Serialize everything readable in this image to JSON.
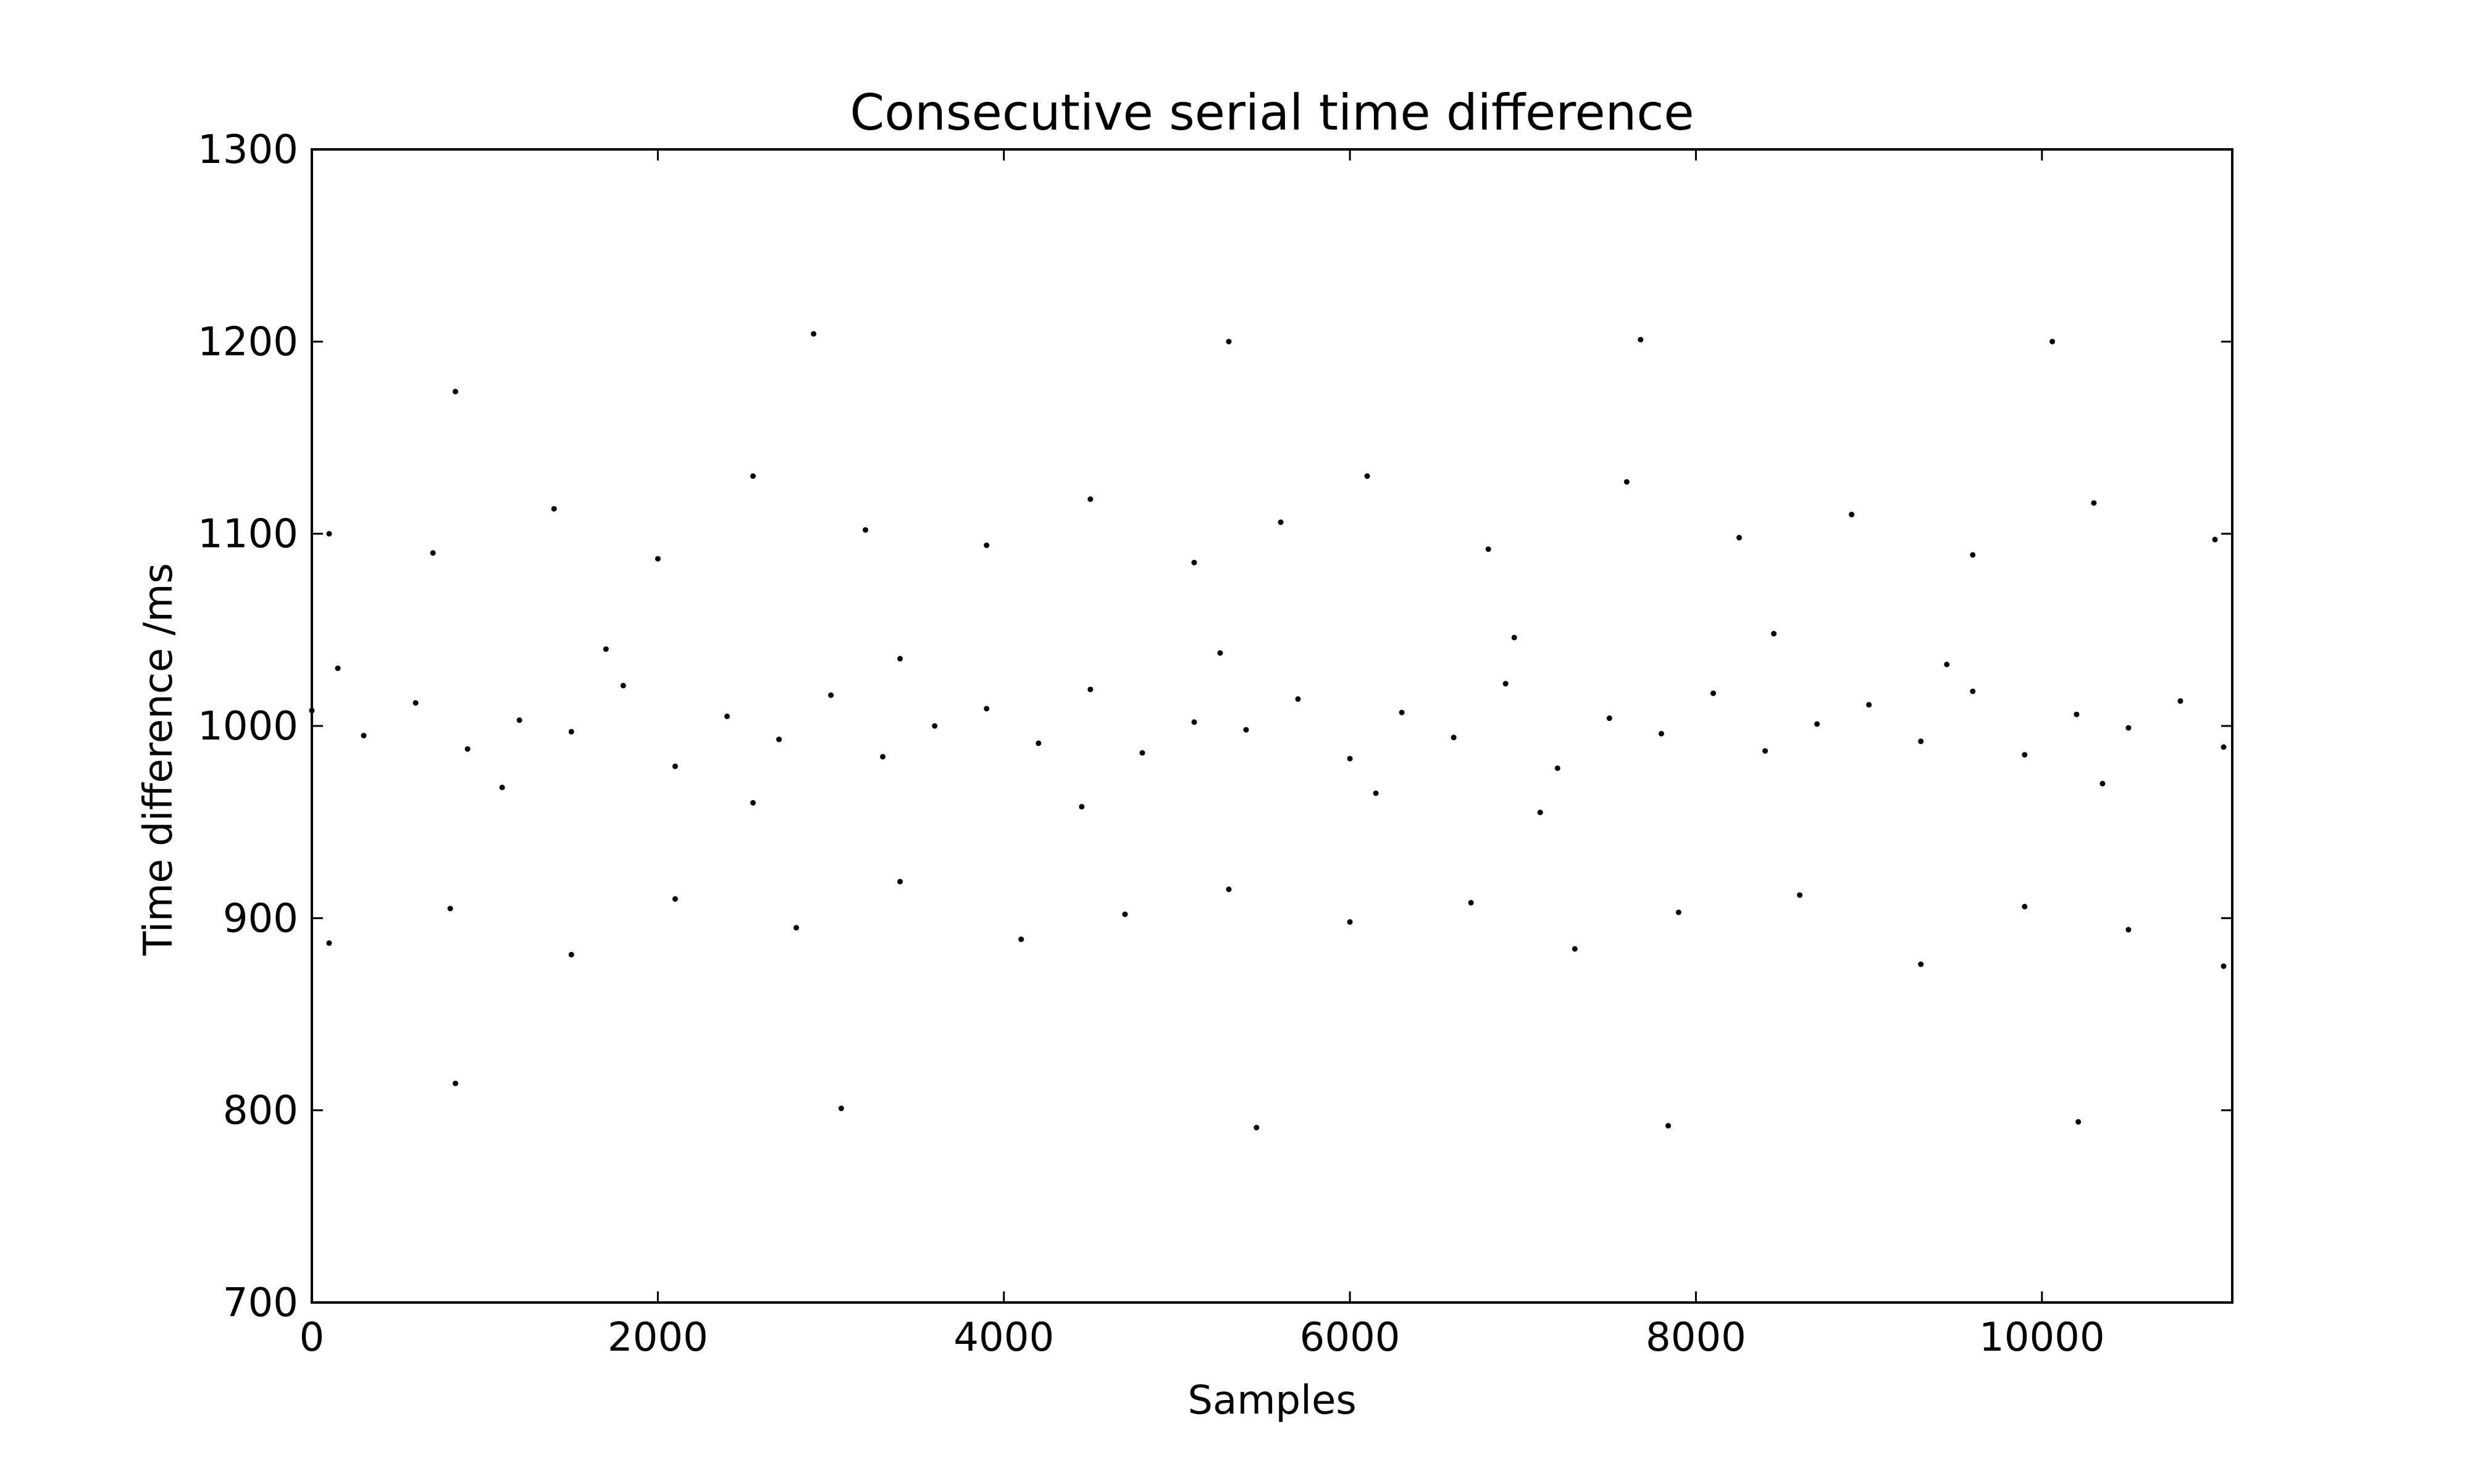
{
  "chart_data": {
    "type": "scatter",
    "title": "Consecutive serial time difference",
    "xlabel": "Samples",
    "ylabel": "Time difference /ms",
    "xlim": [
      0,
      11100
    ],
    "ylim": [
      700,
      1300
    ],
    "xticks": [
      0,
      2000,
      4000,
      6000,
      8000,
      10000
    ],
    "xtick_labels": [
      "0",
      "2000",
      "4000",
      "6000",
      "8000",
      "10000"
    ],
    "yticks": [
      700,
      800,
      900,
      1000,
      1100,
      1200,
      1300
    ],
    "ytick_labels": [
      "700",
      "800",
      "900",
      "1000",
      "1100",
      "1200",
      "1300"
    ],
    "grid": false,
    "legend": "none",
    "marker_color": "#000000",
    "series": [
      {
        "points": [
          [
            0,
            1008
          ],
          [
            300,
            995
          ],
          [
            600,
            1012
          ],
          [
            900,
            988
          ],
          [
            1200,
            1003
          ],
          [
            1500,
            997
          ],
          [
            1800,
            1021
          ],
          [
            2100,
            979
          ],
          [
            2400,
            1005
          ],
          [
            2700,
            993
          ],
          [
            3000,
            1016
          ],
          [
            3300,
            984
          ],
          [
            3600,
            1000
          ],
          [
            3900,
            1009
          ],
          [
            4200,
            991
          ],
          [
            4500,
            1019
          ],
          [
            4800,
            986
          ],
          [
            5100,
            1002
          ],
          [
            5400,
            998
          ],
          [
            5700,
            1014
          ],
          [
            6000,
            983
          ],
          [
            6300,
            1007
          ],
          [
            6600,
            994
          ],
          [
            6900,
            1022
          ],
          [
            7200,
            978
          ],
          [
            7500,
            1004
          ],
          [
            7800,
            996
          ],
          [
            8100,
            1017
          ],
          [
            8400,
            987
          ],
          [
            8700,
            1001
          ],
          [
            9000,
            1011
          ],
          [
            9300,
            992
          ],
          [
            9600,
            1018
          ],
          [
            9900,
            985
          ],
          [
            10200,
            1006
          ],
          [
            10500,
            999
          ],
          [
            10800,
            1013
          ],
          [
            11050,
            989
          ],
          [
            150,
            1030
          ],
          [
            1100,
            968
          ],
          [
            1700,
            1040
          ],
          [
            2550,
            960
          ],
          [
            3400,
            1035
          ],
          [
            4450,
            958
          ],
          [
            5250,
            1038
          ],
          [
            6150,
            965
          ],
          [
            6950,
            1046
          ],
          [
            7100,
            955
          ],
          [
            8450,
            1048
          ],
          [
            9450,
            1032
          ],
          [
            10350,
            970
          ],
          [
            100,
            1100
          ],
          [
            700,
            1090
          ],
          [
            1400,
            1113
          ],
          [
            2000,
            1087
          ],
          [
            2550,
            1130
          ],
          [
            3200,
            1102
          ],
          [
            3900,
            1094
          ],
          [
            4500,
            1118
          ],
          [
            5100,
            1085
          ],
          [
            5600,
            1106
          ],
          [
            6100,
            1130
          ],
          [
            6800,
            1092
          ],
          [
            7600,
            1127
          ],
          [
            8250,
            1098
          ],
          [
            8900,
            1110
          ],
          [
            9600,
            1089
          ],
          [
            10300,
            1116
          ],
          [
            11000,
            1097
          ],
          [
            100,
            887
          ],
          [
            800,
            905
          ],
          [
            1500,
            881
          ],
          [
            2100,
            910
          ],
          [
            2800,
            895
          ],
          [
            3400,
            919
          ],
          [
            4100,
            889
          ],
          [
            4700,
            902
          ],
          [
            5300,
            915
          ],
          [
            6000,
            898
          ],
          [
            6700,
            908
          ],
          [
            7300,
            884
          ],
          [
            7900,
            903
          ],
          [
            8600,
            912
          ],
          [
            9300,
            876
          ],
          [
            9900,
            906
          ],
          [
            10500,
            894
          ],
          [
            11050,
            875
          ],
          [
            830,
            1174
          ],
          [
            2900,
            1204
          ],
          [
            5300,
            1200
          ],
          [
            7680,
            1201
          ],
          [
            10060,
            1200
          ],
          [
            830,
            814
          ],
          [
            3060,
            801
          ],
          [
            5460,
            791
          ],
          [
            7840,
            792
          ],
          [
            10210,
            794
          ]
        ]
      }
    ]
  }
}
